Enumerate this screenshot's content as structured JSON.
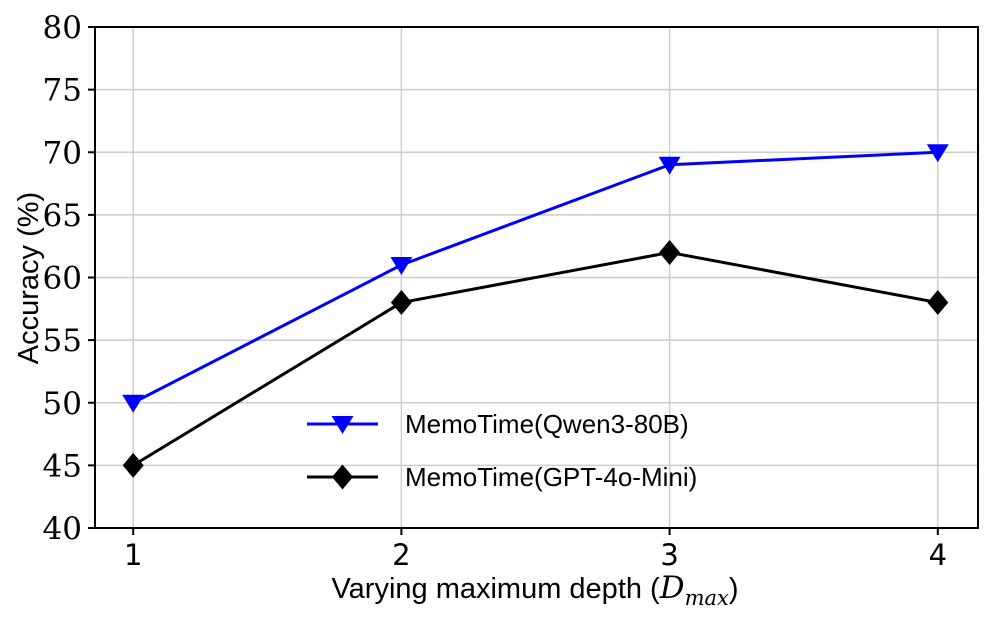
{
  "chart_data": {
    "type": "line",
    "x": [
      1,
      2,
      3,
      4
    ],
    "series": [
      {
        "name": "MemoTime(Qwen3-80B)",
        "values": [
          50,
          61,
          69,
          70
        ],
        "color": "#0000ff",
        "marker": "triangle-down"
      },
      {
        "name": "MemoTime(GPT-4o-Mini)",
        "values": [
          45,
          58,
          62,
          58
        ],
        "color": "#000000",
        "marker": "diamond"
      }
    ],
    "xlabel": {
      "prefix": "Varying maximum depth (",
      "var": "D",
      "sub": "max",
      "suffix": ")"
    },
    "ylabel": "Accuracy (%)",
    "xticks": [
      1,
      2,
      3,
      4
    ],
    "yticks": [
      40,
      45,
      50,
      55,
      60,
      65,
      70,
      75,
      80
    ],
    "ylim": [
      40,
      80
    ],
    "grid": true,
    "legend_position": "lower-center-inside",
    "colors": {
      "accent_blue": "#0000ff",
      "series_black": "#000000",
      "grid": "#cccccc",
      "axis": "#000000",
      "background": "#ffffff"
    }
  }
}
